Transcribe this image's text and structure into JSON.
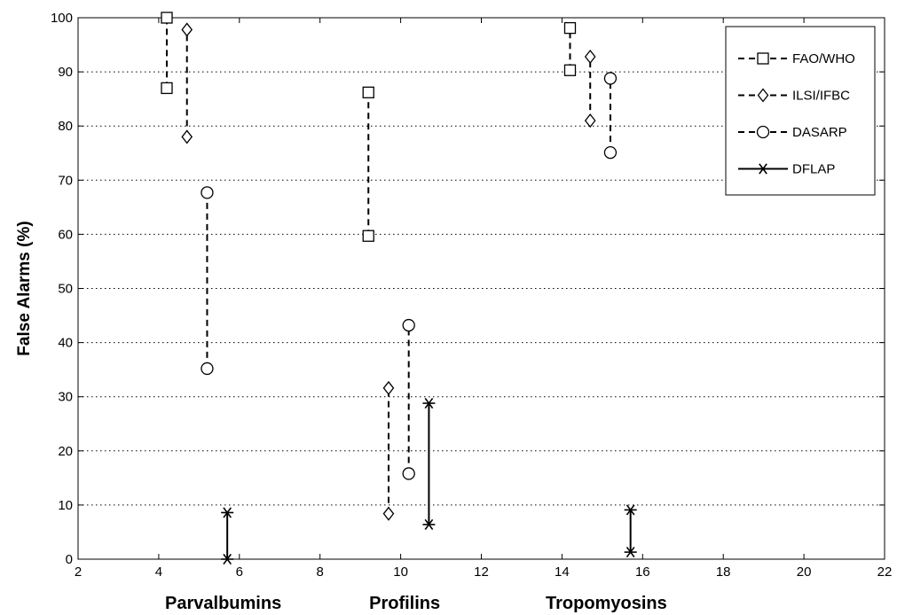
{
  "chart_data": {
    "type": "scatter",
    "title": "",
    "ylabel": "False Alarms (%)",
    "xlim": [
      2,
      22
    ],
    "ylim": [
      0,
      100
    ],
    "xticks": [
      2,
      4,
      6,
      8,
      10,
      12,
      14,
      16,
      18,
      20,
      22
    ],
    "yticks": [
      0,
      10,
      20,
      30,
      40,
      50,
      60,
      70,
      80,
      90,
      100
    ],
    "grid": "y-dotted",
    "legend_position": "top-right",
    "group_labels": [
      {
        "label": "Parvalbumins",
        "x": 5.6
      },
      {
        "label": "Profilins",
        "x": 10.1
      },
      {
        "label": "Tropomyosins",
        "x": 15.1
      }
    ],
    "series": [
      {
        "name": "FAO/WHO",
        "marker": "square",
        "line": "dashed",
        "ranges": [
          {
            "x": 4.2,
            "y": [
              87,
              100
            ]
          },
          {
            "x": 9.2,
            "y": [
              59.7,
              86.2
            ]
          },
          {
            "x": 14.2,
            "y": [
              90.3,
              98.1
            ]
          }
        ]
      },
      {
        "name": "ILSI/IFBC",
        "marker": "diamond",
        "line": "dashed",
        "ranges": [
          {
            "x": 4.7,
            "y": [
              78,
              97.8
            ]
          },
          {
            "x": 9.7,
            "y": [
              8.4,
              31.6
            ]
          },
          {
            "x": 14.7,
            "y": [
              81,
              92.8
            ]
          }
        ]
      },
      {
        "name": "DASARP",
        "marker": "circle",
        "line": "dashed",
        "ranges": [
          {
            "x": 5.2,
            "y": [
              35.2,
              67.7
            ]
          },
          {
            "x": 10.2,
            "y": [
              15.8,
              43.2
            ]
          },
          {
            "x": 15.2,
            "y": [
              75.1,
              88.8
            ]
          }
        ]
      },
      {
        "name": "DFLAP",
        "marker": "asterisk",
        "line": "solid",
        "ranges": [
          {
            "x": 5.7,
            "y": [
              0,
              8.6
            ]
          },
          {
            "x": 10.7,
            "y": [
              6.4,
              28.8
            ]
          },
          {
            "x": 15.7,
            "y": [
              1.3,
              9.1
            ]
          }
        ]
      }
    ]
  }
}
